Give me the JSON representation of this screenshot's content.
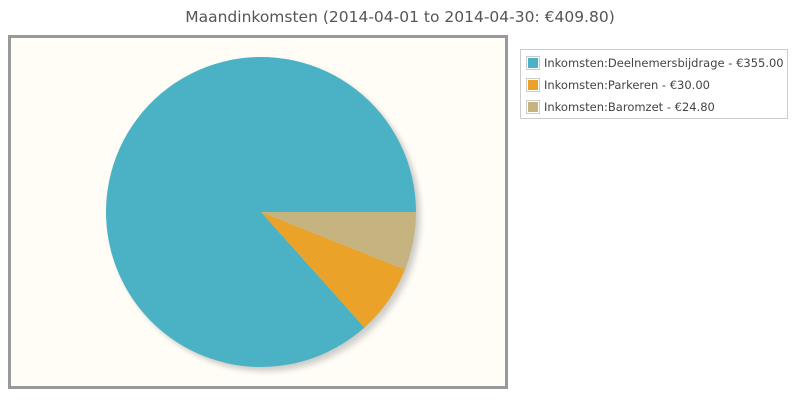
{
  "chart_data": {
    "type": "pie",
    "title": "Maandinkomsten (2014-04-01 to 2014-04-30: €409.80)",
    "slices": [
      {
        "label": "Inkomsten:Deelnemersbijdrage - €355.00",
        "value": 355.0,
        "color": "#4bb2c5"
      },
      {
        "label": "Inkomsten:Parkeren - €30.00",
        "value": 30.0,
        "color": "#eaa228"
      },
      {
        "label": "Inkomsten:Baromzet - €24.80",
        "value": 24.8,
        "color": "#c5b47f"
      }
    ],
    "legend_position": "outside-top-right",
    "plot_background": "#fffdf6",
    "frame_color": "#999999"
  }
}
